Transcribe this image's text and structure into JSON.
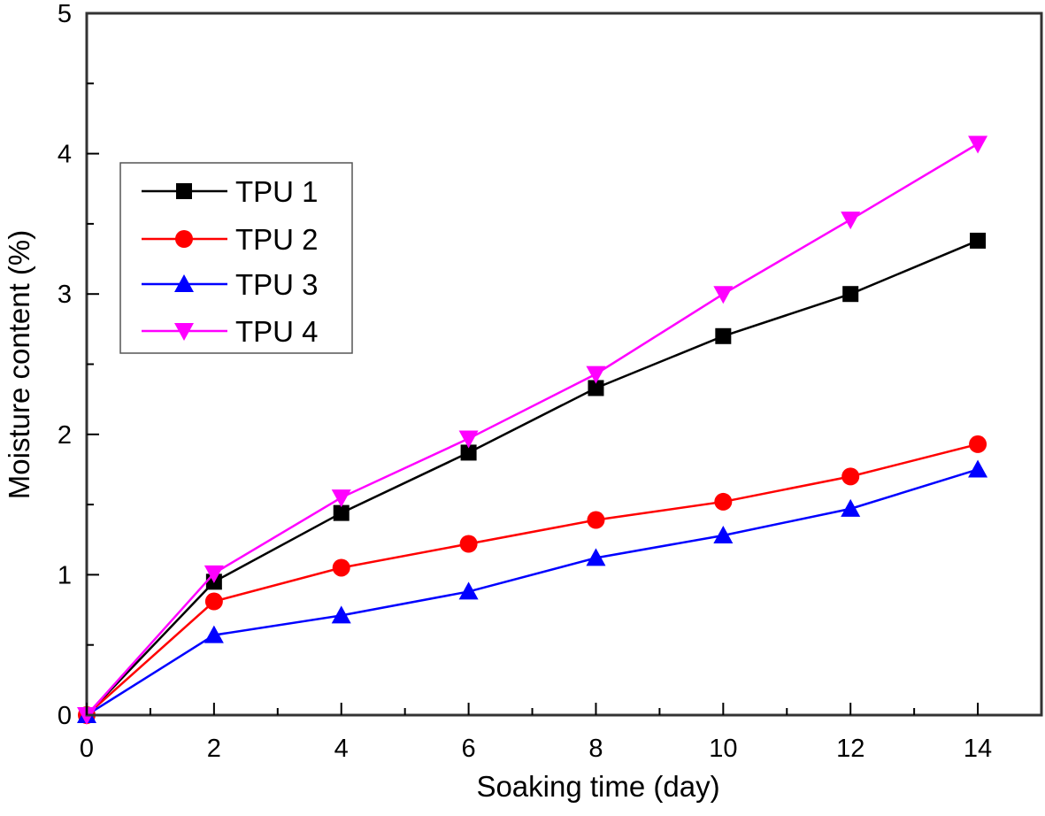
{
  "chart_data": {
    "type": "line",
    "title": "",
    "xlabel": "Soaking time (day)",
    "ylabel": "Moisture content (%)",
    "xlim": [
      0,
      15
    ],
    "ylim": [
      0,
      5
    ],
    "x_major_ticks": [
      0,
      2,
      4,
      6,
      8,
      10,
      12,
      14
    ],
    "x_minor_step": 1,
    "y_major_ticks": [
      0,
      1,
      2,
      3,
      4,
      5
    ],
    "y_minor_step": 0.5,
    "grid": false,
    "legend_position": "upper-left",
    "x": [
      0,
      2,
      4,
      6,
      8,
      10,
      12,
      14
    ],
    "series": [
      {
        "name": "TPU 1",
        "color": "#000000",
        "marker": "square",
        "values": [
          0,
          0.95,
          1.44,
          1.87,
          2.33,
          2.7,
          3.0,
          3.38
        ]
      },
      {
        "name": "TPU 2",
        "color": "#ff0000",
        "marker": "circle",
        "values": [
          0,
          0.81,
          1.05,
          1.22,
          1.39,
          1.52,
          1.7,
          1.93
        ]
      },
      {
        "name": "TPU 3",
        "color": "#0000ff",
        "marker": "triangle-up",
        "values": [
          0,
          0.57,
          0.71,
          0.88,
          1.12,
          1.28,
          1.47,
          1.75
        ]
      },
      {
        "name": "TPU 4",
        "color": "#ff00ff",
        "marker": "triangle-down",
        "values": [
          0,
          1.01,
          1.55,
          1.97,
          2.43,
          3.0,
          3.53,
          4.07
        ]
      }
    ]
  }
}
